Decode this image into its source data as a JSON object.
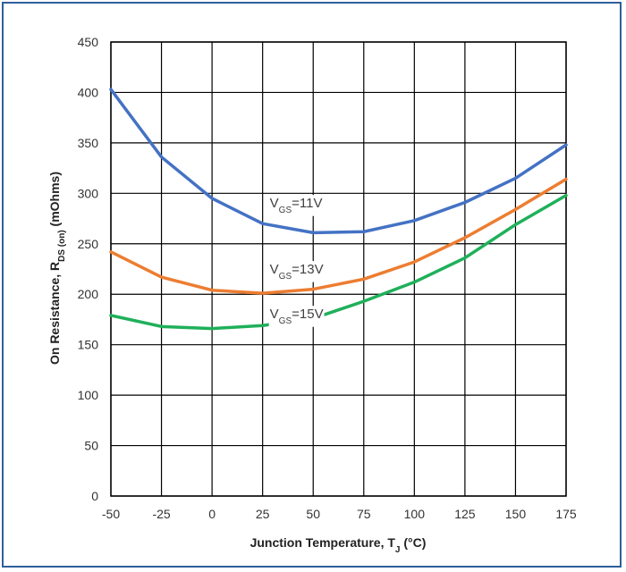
{
  "chart_data": {
    "type": "line",
    "title": "",
    "xlabel": "Junction Temperature, T",
    "xlabel_sub": "J",
    "xlabel_unit": " (°C)",
    "ylabel": "On Resistance, R",
    "ylabel_sub": "DS (on)",
    "ylabel_unit": " (mOhms)",
    "x": [
      -50,
      -25,
      0,
      25,
      50,
      75,
      100,
      125,
      150,
      175
    ],
    "xlim": [
      -50,
      175
    ],
    "ylim": [
      0,
      450
    ],
    "x_ticks": [
      "-50",
      "-25",
      "0",
      "25",
      "50",
      "75",
      "100",
      "125",
      "150",
      "175"
    ],
    "y_ticks": [
      "0",
      "50",
      "100",
      "150",
      "200",
      "250",
      "300",
      "350",
      "400",
      "450"
    ],
    "grid": true,
    "series": [
      {
        "name": "11V",
        "label_prefix": "V",
        "label_sub": "GS",
        "label_suffix": "=11V",
        "color": "#4472c4",
        "values": [
          403,
          336,
          295,
          270,
          261,
          262,
          273,
          291,
          315,
          348
        ]
      },
      {
        "name": "13V",
        "label_prefix": "V",
        "label_sub": "GS",
        "label_suffix": "=13V",
        "color": "#ed7d31",
        "values": [
          242,
          217,
          204,
          201,
          205,
          215,
          232,
          256,
          284,
          314
        ]
      },
      {
        "name": "15V",
        "label_prefix": "V",
        "label_sub": "GS",
        "label_suffix": "=15V",
        "color": "#1fb05a",
        "values": [
          179,
          168,
          166,
          169,
          176,
          193,
          212,
          236,
          269,
          298
        ]
      }
    ]
  }
}
